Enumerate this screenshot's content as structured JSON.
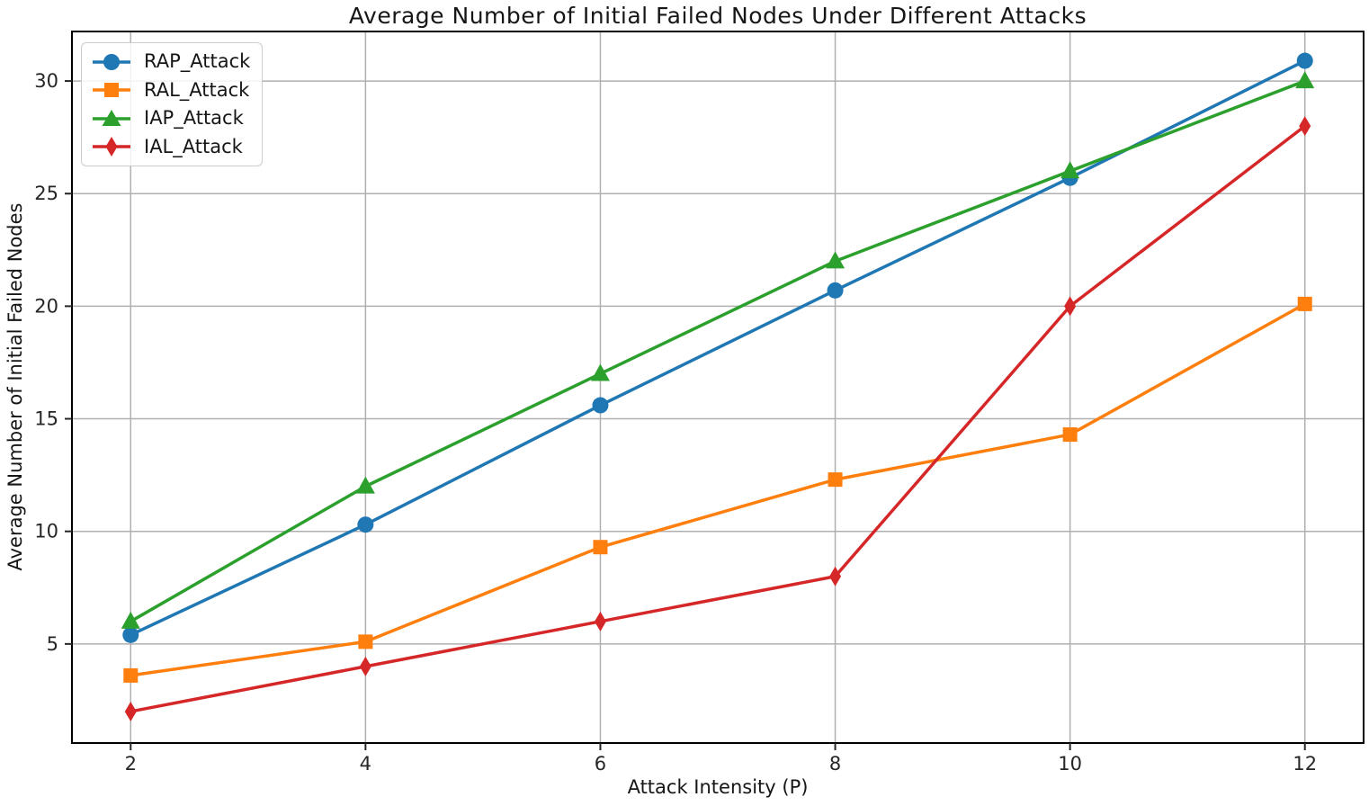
{
  "chart_data": {
    "type": "line",
    "title": "Average Number of Initial Failed Nodes Under Different Attacks",
    "xlabel": "Attack Intensity (P)",
    "ylabel": "Average Number of Initial Failed Nodes",
    "x": [
      2,
      4,
      6,
      8,
      10,
      12
    ],
    "xticks": [
      2,
      4,
      6,
      8,
      10,
      12
    ],
    "yticks": [
      5,
      10,
      15,
      20,
      25,
      30
    ],
    "xlim": [
      1.5,
      12.5
    ],
    "ylim": [
      0.6,
      32.2
    ],
    "grid": true,
    "legend_position": "upper left",
    "series": [
      {
        "name": "RAP_Attack",
        "color": "#1f77b4",
        "marker": "circle",
        "values": [
          5.4,
          10.3,
          15.6,
          20.7,
          25.7,
          30.9
        ]
      },
      {
        "name": "RAL_Attack",
        "color": "#ff7f0e",
        "marker": "square",
        "values": [
          3.6,
          5.1,
          9.3,
          12.3,
          14.3,
          20.1
        ]
      },
      {
        "name": "IAP_Attack",
        "color": "#2ca02c",
        "marker": "triangle",
        "values": [
          6,
          12,
          17,
          22,
          26,
          30
        ]
      },
      {
        "name": "IAL_Attack",
        "color": "#d62728",
        "marker": "diamond",
        "values": [
          2,
          4,
          6,
          8,
          20,
          28
        ]
      }
    ],
    "colors": {
      "grid": "#b0b0b0",
      "spine": "#000000",
      "text": "#262626",
      "legend_border": "#cccccc"
    }
  }
}
